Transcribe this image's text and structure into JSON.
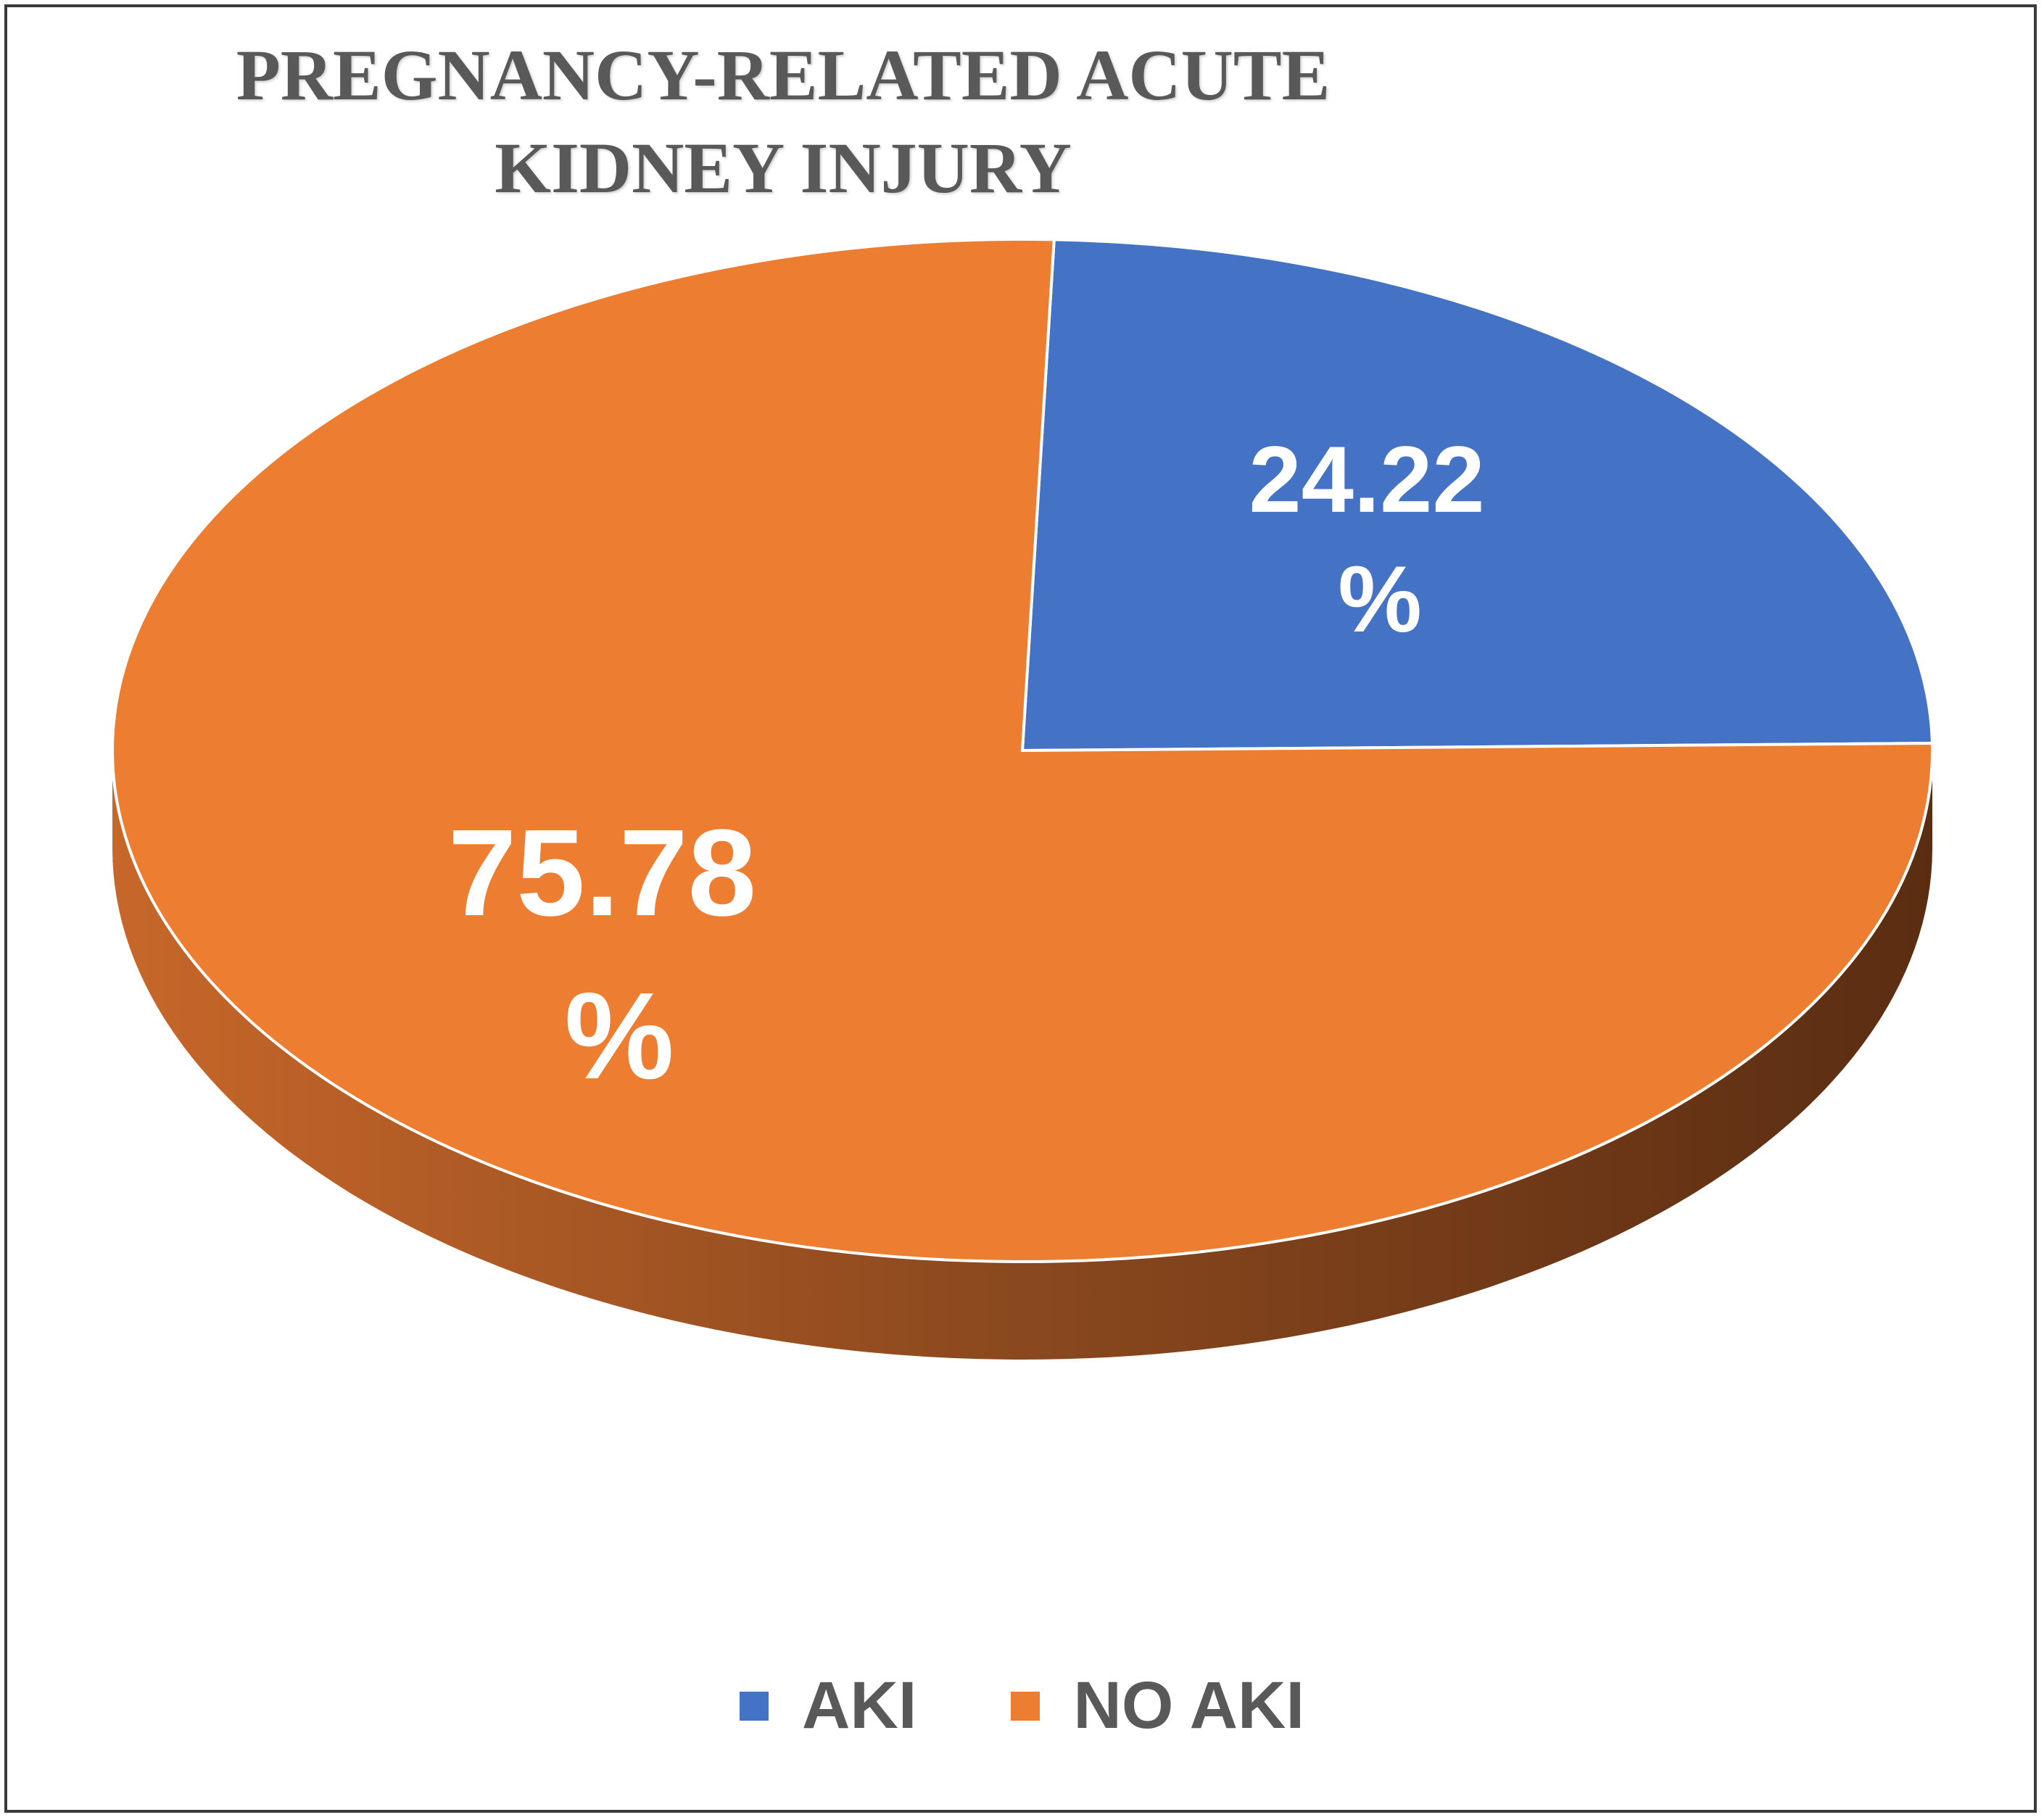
{
  "chart_data": {
    "type": "pie",
    "title_lines": [
      "PREGNANCY-RELATED ACUTE",
      "KIDNEY INJURY"
    ],
    "slices": [
      {
        "name": "AKI",
        "value": 24.22,
        "label_line1": "24.22",
        "label_line2": "%",
        "color": "#4472c4"
      },
      {
        "name": "NO AKI",
        "value": 75.78,
        "label_line1": "75.78",
        "label_line2": "%",
        "color": "#ed7d31"
      }
    ],
    "legend_position": "bottom",
    "style": "3d"
  }
}
